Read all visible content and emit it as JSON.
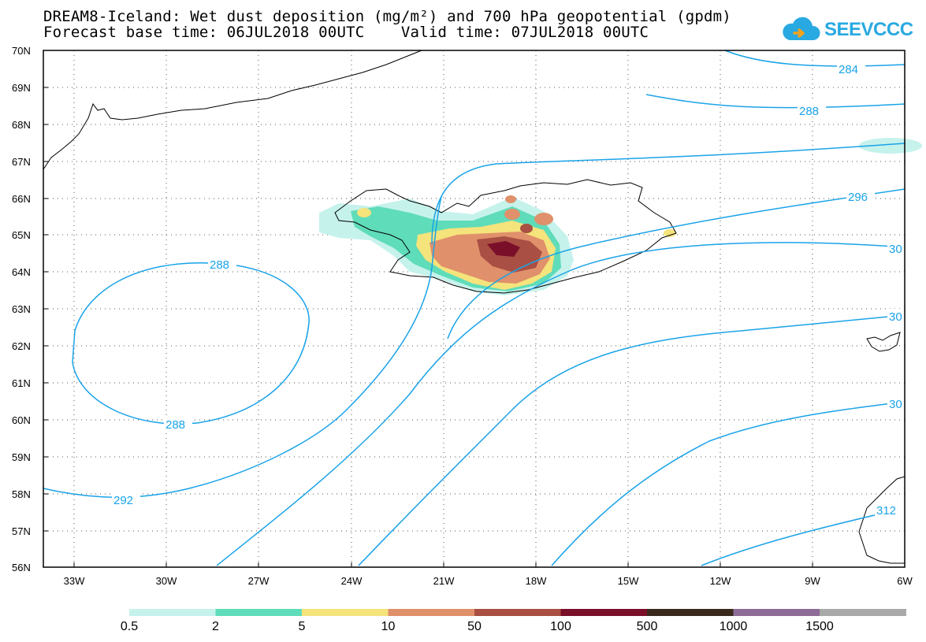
{
  "title": {
    "line1": "DREAM8-Iceland: Wet dust deposition (mg/m²) and 700 hPa geopotential (gpdm)",
    "line2": "Forecast base time: 06JUL2018 00UTC    Valid time: 07JUL2018 00UTC"
  },
  "logo": {
    "text": "SEEVCCC",
    "icon": "cloud-icon",
    "color": "#29a9e1"
  },
  "map": {
    "lat_labels": [
      "70N",
      "69N",
      "68N",
      "67N",
      "66N",
      "65N",
      "64N",
      "63N",
      "62N",
      "61N",
      "60N",
      "59N",
      "58N",
      "57N",
      "56N"
    ],
    "lon_labels": [
      "33W",
      "30W",
      "27W",
      "24W",
      "21W",
      "18W",
      "15W",
      "12W",
      "9W",
      "6W"
    ],
    "contour_color": "#1aa3e8",
    "contour_labels": [
      "284",
      "288",
      "296",
      "30",
      "30",
      "30",
      "312",
      "288",
      "288",
      "292"
    ]
  },
  "colorbar": {
    "labels": [
      "0.5",
      "2",
      "5",
      "10",
      "50",
      "100",
      "500",
      "1000",
      "1500"
    ],
    "colors": [
      "#c6f2ec",
      "#5fdcb9",
      "#f5e37c",
      "#e0906a",
      "#a94f43",
      "#7a0f2a",
      "#3a2a1e",
      "#8d6c97",
      "#a9a9a9"
    ]
  }
}
